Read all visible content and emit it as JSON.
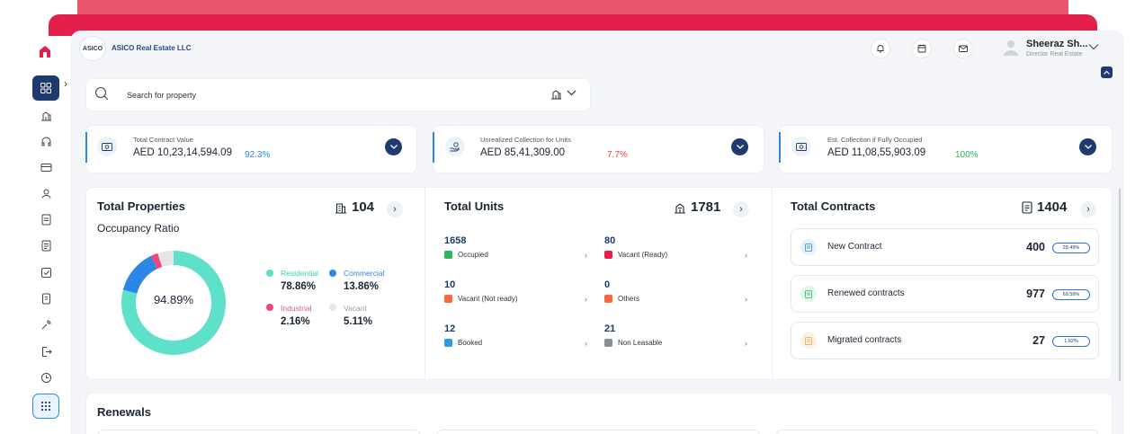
{
  "header": {
    "logo_text": "ASICO",
    "company": "ASICO Real Estate LLC",
    "user_name": "Sheeraz Sh...",
    "user_role": "Director Real Estate"
  },
  "search": {
    "placeholder": "Search for property"
  },
  "stats": [
    {
      "label": "Total Contract Value",
      "value": "AED 10,23,14,594.09",
      "percent": "92.3%",
      "percent_color": "#2c86e8"
    },
    {
      "label": "Unrealized Collection for Units",
      "value": "AED 85,41,309.00",
      "percent": "7.7%",
      "percent_color": "#e5484d"
    },
    {
      "label": "Est. Collection if Fully Occupied",
      "value": "AED 11,08,55,903.09",
      "percent": "100%",
      "percent_color": "#2fb35b"
    }
  ],
  "properties": {
    "title": "Total Properties",
    "count": "104",
    "occupancy_title": "Occupancy Ratio",
    "center_value": "94.89%",
    "legend": [
      {
        "label": "Residential",
        "value": "78.86%",
        "color": "#5fe0c8"
      },
      {
        "label": "Commercial",
        "value": "13.86%",
        "color": "#2c86e8"
      },
      {
        "label": "Industrial",
        "value": "2.16%",
        "color": "#f0457a"
      },
      {
        "label": "Vacant",
        "value": "5.11%",
        "color": "#e4e6ea"
      }
    ]
  },
  "units": {
    "title": "Total Units",
    "count": "1781",
    "items": [
      {
        "value": "1658",
        "label": "Occupied",
        "color": "#2fb35b"
      },
      {
        "value": "80",
        "label": "Vacant (Ready)",
        "color": "#e4204a"
      },
      {
        "value": "10",
        "label": "Vacant (Not ready)",
        "color": "#f26a3e"
      },
      {
        "value": "0",
        "label": "Others",
        "color": "#f26a3e"
      },
      {
        "value": "12",
        "label": "Booked",
        "color": "#2c9be8"
      },
      {
        "value": "21",
        "label": "Non Leasable",
        "color": "#8a8d92"
      }
    ]
  },
  "contracts": {
    "title": "Total Contracts",
    "count": "1404",
    "items": [
      {
        "label": "New Contract",
        "value": "400",
        "percent": "28.49%",
        "icon_bg": "#e6f2fd",
        "icon_color": "#2c86e8"
      },
      {
        "label": "Renewed contracts",
        "value": "977",
        "percent": "69.59%",
        "icon_bg": "#e5f6ec",
        "icon_color": "#2fb35b"
      },
      {
        "label": "Migrated contracts",
        "value": "27",
        "percent": "1.92%",
        "icon_bg": "#fdf1e3",
        "icon_color": "#f0a33a"
      }
    ]
  },
  "renewals": {
    "title": "Renewals"
  },
  "sidebar": {
    "icons": [
      "dashboard-icon",
      "building-icon",
      "headset-icon",
      "wallet-icon",
      "users-icon",
      "document-icon",
      "invoice-icon",
      "checklist-icon",
      "receipt-icon",
      "wrench-icon",
      "logout-icon",
      "clock-icon",
      "apps-grid-icon"
    ]
  }
}
